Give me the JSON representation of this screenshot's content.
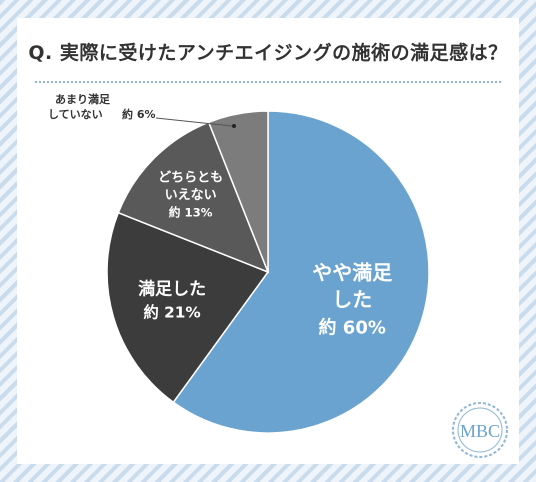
{
  "title": "Q. 実際に受けたアンチエイジングの施術の満足感は？",
  "logo_text": "MBC",
  "colors": {
    "frame_stripe": "#c9dcee",
    "accent": "#6aa3cf",
    "slice_colors": [
      "#6aa3cf",
      "#3c3c3c",
      "#595959",
      "#7c7c7c"
    ]
  },
  "chart_data": {
    "type": "pie",
    "start_angle_deg": 0,
    "direction": "clockwise",
    "slices": [
      {
        "label_lines": [
          "やや満足",
          "した"
        ],
        "value_text": "約 60%",
        "value": 60
      },
      {
        "label_lines": [
          "満足した"
        ],
        "value_text": "約 21%",
        "value": 21
      },
      {
        "label_lines": [
          "どちらとも",
          "いえない"
        ],
        "value_text": "約 13%",
        "value": 13
      },
      {
        "label_lines": [
          "あまり満足",
          "していない"
        ],
        "value_text": "約 6%",
        "value": 6
      }
    ]
  }
}
